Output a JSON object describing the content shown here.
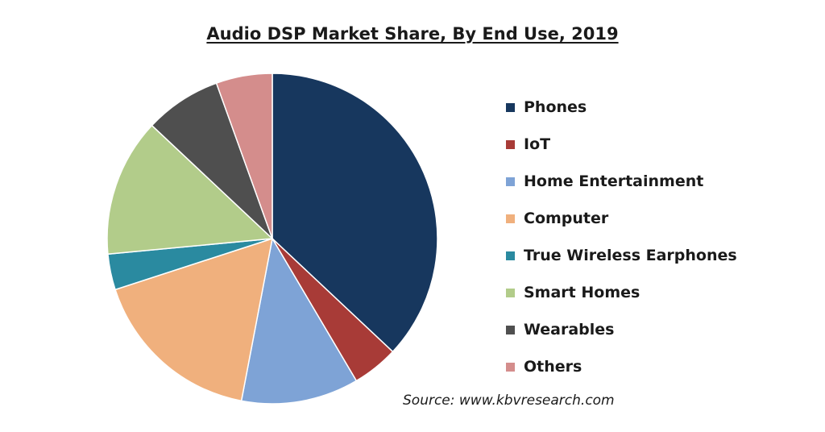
{
  "chart_data": {
    "type": "pie",
    "title": "Audio DSP Market Share, By End Use, 2019",
    "source": "Source: www.kbvresearch.com",
    "legend_position": "right",
    "slices": [
      {
        "label": "Phones",
        "value": 37,
        "color": "#17375e"
      },
      {
        "label": "IoT",
        "value": 4.5,
        "color": "#a83b37"
      },
      {
        "label": "Home Entertainment",
        "value": 11.5,
        "color": "#7ea3d6"
      },
      {
        "label": "Computer",
        "value": 17,
        "color": "#f0b07d"
      },
      {
        "label": "True Wireless Earphones",
        "value": 3.5,
        "color": "#2a8aa0"
      },
      {
        "label": "Smart Homes",
        "value": 13.5,
        "color": "#b2cc8a"
      },
      {
        "label": "Wearables",
        "value": 7.5,
        "color": "#4f4f4f"
      },
      {
        "label": "Others",
        "value": 5.5,
        "color": "#d48d8c"
      }
    ]
  }
}
